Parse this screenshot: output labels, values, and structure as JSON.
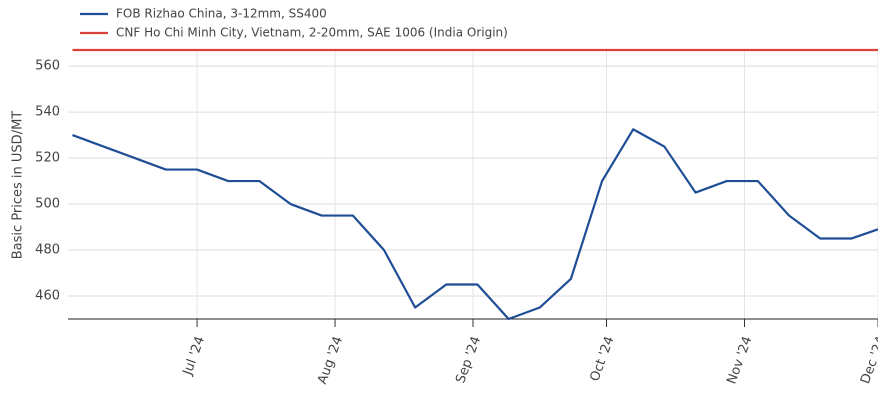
{
  "chart_data": {
    "type": "line",
    "ylabel": "Basic Prices in USD/MT",
    "x": [
      "2024-06-03",
      "2024-06-10",
      "2024-06-17",
      "2024-06-24",
      "2024-07-01",
      "2024-07-08",
      "2024-07-15",
      "2024-07-22",
      "2024-07-29",
      "2024-08-05",
      "2024-08-12",
      "2024-08-19",
      "2024-08-26",
      "2024-09-02",
      "2024-09-09",
      "2024-09-16",
      "2024-09-23",
      "2024-09-30",
      "2024-10-07",
      "2024-10-14",
      "2024-10-21",
      "2024-10-28",
      "2024-11-04",
      "2024-11-11",
      "2024-11-18",
      "2024-11-25",
      "2024-12-01"
    ],
    "series": [
      {
        "name": "FOB Rizhao China, 3-12mm, SS400",
        "color": "#1f4e96",
        "values": [
          530,
          525,
          520,
          515,
          515,
          510,
          510,
          500,
          495,
          495,
          480,
          455,
          465,
          465,
          450,
          455,
          467.5,
          510,
          532.5,
          525,
          505,
          510,
          510,
          495,
          485,
          485,
          489
        ]
      },
      {
        "name": "CNF Ho Chi Minh City, Vietnam, 2-20mm, SAE 1006 (India Origin)",
        "color": "#d9453d",
        "values": [
          567,
          567,
          567,
          567,
          567,
          567,
          567,
          567,
          567,
          567,
          567,
          567,
          567,
          567,
          567,
          567,
          567,
          567,
          567,
          567,
          567,
          567,
          567,
          567,
          567,
          567,
          567
        ]
      }
    ],
    "xlim": [
      "2024-06-02",
      "2024-12-01"
    ],
    "xticks": [
      {
        "value": "2024-07-01",
        "label": "Jul '24"
      },
      {
        "value": "2024-08-01",
        "label": "Aug '24"
      },
      {
        "value": "2024-09-01",
        "label": "Sep '24"
      },
      {
        "value": "2024-10-01",
        "label": "Oct '24"
      },
      {
        "value": "2024-11-01",
        "label": "Nov '24"
      },
      {
        "value": "2024-12-01",
        "label": "Dec '24"
      }
    ],
    "ylim": [
      450,
      567
    ],
    "yticks": [
      460,
      480,
      500,
      520,
      540,
      560
    ],
    "grid": true,
    "legend": "top-left"
  }
}
